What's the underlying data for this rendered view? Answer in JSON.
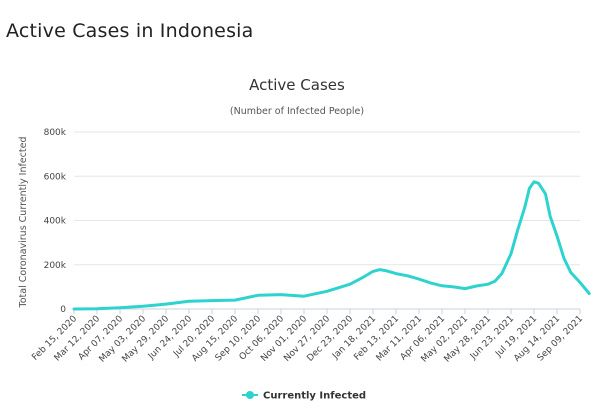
{
  "page": {
    "title": "Active Cases in Indonesia"
  },
  "colors": {
    "series": "#2ed3cf",
    "grid": "#e6e6e6",
    "axis": "#c8d0e0"
  },
  "chart_data": {
    "type": "area",
    "title": "Active Cases",
    "subtitle": "(Number of Infected People)",
    "ylabel": "Total Coronavirus Currently Infected",
    "xlabel": "",
    "ylim": [
      0,
      800000
    ],
    "yticks": [
      0,
      200000,
      400000,
      600000,
      800000
    ],
    "ytick_labels": [
      "0",
      "200k",
      "400k",
      "600k",
      "800k"
    ],
    "grid": true,
    "legend": "bottom-center",
    "categories": [
      "Feb 15, 2020",
      "Mar 12, 2020",
      "Apr 07, 2020",
      "May 03, 2020",
      "May 29, 2020",
      "Jun 24, 2020",
      "Jul 20, 2020",
      "Aug 15, 2020",
      "Sep 10, 2020",
      "Oct 06, 2020",
      "Nov 01, 2020",
      "Nov 27, 2020",
      "Dec 23, 2020",
      "Jan 18, 2021",
      "Feb 13, 2021",
      "Mar 11, 2021",
      "Apr 06, 2021",
      "May 02, 2021",
      "May 28, 2021",
      "Jun 23, 2021",
      "Jul 19, 2021",
      "Aug 14, 2021",
      "Sep 09, 2021"
    ],
    "series": [
      {
        "name": "Currently Infected",
        "x": [
          0,
          1,
          2,
          3,
          4,
          5,
          6,
          7,
          8,
          9,
          10,
          11,
          12,
          12.6,
          13,
          13.3,
          13.6,
          14,
          14.5,
          15,
          15.5,
          16,
          16.5,
          17,
          17.5,
          18,
          18.3,
          18.6,
          19,
          19.3,
          19.6,
          19.8,
          20,
          20.2,
          20.5,
          20.7,
          21,
          21.3,
          21.6,
          22,
          22.4
        ],
        "values": [
          0,
          1000,
          6000,
          12000,
          22000,
          35000,
          38000,
          40000,
          62000,
          65000,
          58000,
          80000,
          112000,
          145000,
          170000,
          178000,
          172000,
          160000,
          150000,
          135000,
          118000,
          105000,
          100000,
          92000,
          104000,
          112000,
          125000,
          160000,
          250000,
          360000,
          460000,
          545000,
          575000,
          568000,
          520000,
          420000,
          330000,
          230000,
          165000,
          120000,
          70000
        ]
      }
    ]
  }
}
